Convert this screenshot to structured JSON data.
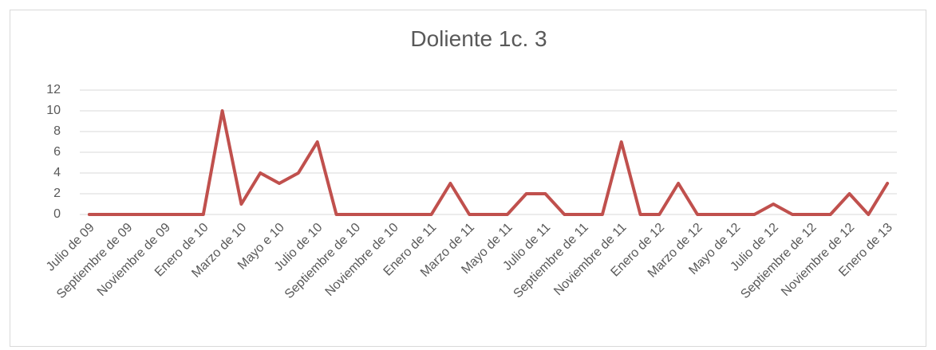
{
  "chart_data": {
    "type": "line",
    "title": "Doliente 1c. 3",
    "categories": [
      "Julio de 09",
      null,
      "Septiembre de 09",
      null,
      "Noviembre de 09",
      null,
      "Enero de 10",
      null,
      "Marzo de 10",
      null,
      "Mayo e 10",
      null,
      "Julio de 10",
      null,
      "Septiembre de 10",
      null,
      "Noviembre de 10",
      null,
      "Enero de 11",
      null,
      "Marzo de 11",
      null,
      "Mayo de 11",
      null,
      "Julio de 11",
      null,
      "Septiembre de 11",
      null,
      "Noviembre de 11",
      null,
      "Enero de 12",
      null,
      "Marzo de 12",
      null,
      "Mayo de 12",
      null,
      "Julio de 12",
      null,
      "Septiembre de 12",
      null,
      "Noviembre de 12",
      null,
      "Enero de 13"
    ],
    "series": [
      {
        "name": "Doliente 1c. 3",
        "color": "#c0504d",
        "values": [
          0,
          0,
          0,
          0,
          0,
          0,
          0,
          10,
          1,
          4,
          3,
          4,
          7,
          0,
          0,
          0,
          0,
          0,
          0,
          3,
          0,
          0,
          0,
          2,
          2,
          0,
          0,
          0,
          7,
          0,
          0,
          3,
          0,
          0,
          0,
          0,
          1,
          0,
          0,
          0,
          2,
          0,
          3
        ]
      }
    ],
    "ylim": [
      0,
      12
    ],
    "yticks": [
      0,
      2,
      4,
      6,
      8,
      10,
      12
    ],
    "grid": true
  }
}
